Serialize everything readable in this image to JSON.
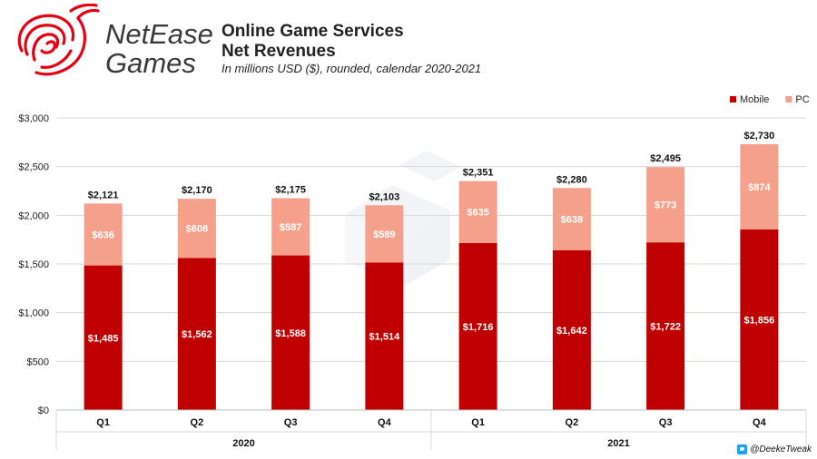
{
  "brand": {
    "line1": "NetEase",
    "line2": "Games",
    "color": "#e60012"
  },
  "header": {
    "title_line1": "Online Game Services",
    "title_line2": "Net Revenues",
    "subtitle": "In millions USD ($), rounded, calendar 2020-2021"
  },
  "credit": {
    "handle": "@DeekeTweak"
  },
  "chart_data": {
    "type": "bar",
    "stacked": true,
    "categories": [
      "Q1",
      "Q2",
      "Q3",
      "Q4",
      "Q1",
      "Q2",
      "Q3",
      "Q4"
    ],
    "groups": [
      {
        "label": "2020",
        "span": 4
      },
      {
        "label": "2021",
        "span": 4
      }
    ],
    "series": [
      {
        "name": "Mobile",
        "color": "#c00000",
        "values": [
          1485,
          1562,
          1588,
          1514,
          1716,
          1642,
          1722,
          1856
        ],
        "labels": [
          "$1,485",
          "$1,562",
          "$1,588",
          "$1,514",
          "$1,716",
          "$1,642",
          "$1,722",
          "$1,856"
        ]
      },
      {
        "name": "PC",
        "color": "#f4a08a",
        "values": [
          636,
          608,
          587,
          589,
          635,
          638,
          773,
          874
        ],
        "labels": [
          "$636",
          "$608",
          "$587",
          "$589",
          "$635",
          "$638",
          "$773",
          "$874"
        ]
      }
    ],
    "totals": [
      2121,
      2170,
      2175,
      2103,
      2351,
      2280,
      2495,
      2730
    ],
    "total_labels": [
      "$2,121",
      "$2,170",
      "$2,175",
      "$2,103",
      "$2,351",
      "$2,280",
      "$2,495",
      "$2,730"
    ],
    "yticks": [
      0,
      500,
      1000,
      1500,
      2000,
      2500,
      3000
    ],
    "ytick_labels": [
      "$0",
      "$500",
      "$1,000",
      "$1,500",
      "$2,000",
      "$2,500",
      "$3,000"
    ],
    "ylim": [
      0,
      3000
    ],
    "grid": true,
    "legend": "top-right"
  }
}
